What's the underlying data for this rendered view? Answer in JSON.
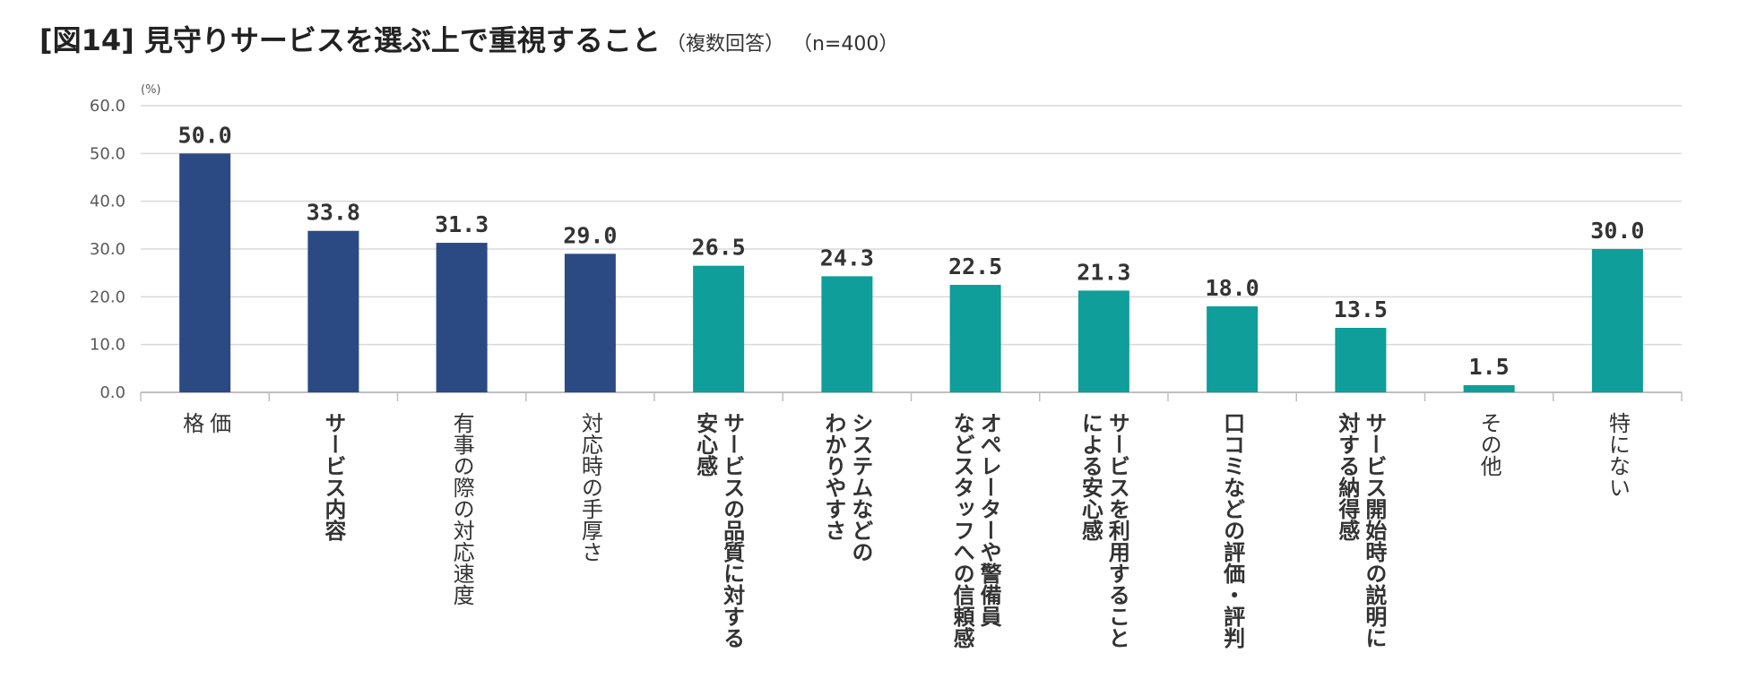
{
  "title": {
    "main": "[図14] 見守りサービスを選ぶ上で重視すること",
    "sub": "（複数回答）",
    "sample": "（n=400）"
  },
  "chart_data": {
    "type": "bar",
    "title": "[図14] 見守りサービスを選ぶ上で重視すること",
    "unit": "(%)",
    "ylim": [
      0,
      60
    ],
    "yticks": [
      "0.0",
      "10.0",
      "20.0",
      "30.0",
      "40.0",
      "50.0",
      "60.0"
    ],
    "grid": true,
    "colors": {
      "primary": "#2B4A84",
      "secondary": "#0F9E99"
    },
    "categories": [
      {
        "lines": [
          "価",
          "格"
        ],
        "value": 50.0,
        "label": "50.0",
        "group": "primary",
        "bold": false
      },
      {
        "lines": [
          "サービス内容"
        ],
        "value": 33.8,
        "label": "33.8",
        "group": "primary",
        "bold": true
      },
      {
        "lines": [
          "有事の際の対応速度"
        ],
        "value": 31.3,
        "label": "31.3",
        "group": "primary",
        "bold": false
      },
      {
        "lines": [
          "対応時の手厚さ"
        ],
        "value": 29.0,
        "label": "29.0",
        "group": "primary",
        "bold": false
      },
      {
        "lines": [
          "サービスの品質に対する",
          "安心感"
        ],
        "value": 26.5,
        "label": "26.5",
        "group": "secondary",
        "bold": true
      },
      {
        "lines": [
          "システムなどの",
          "わかりやすさ"
        ],
        "value": 24.3,
        "label": "24.3",
        "group": "secondary",
        "bold": true
      },
      {
        "lines": [
          "オペレーターや警備員",
          "などスタッフへの信頼感"
        ],
        "value": 22.5,
        "label": "22.5",
        "group": "secondary",
        "bold": true
      },
      {
        "lines": [
          "サービスを利用すること",
          "による安心感"
        ],
        "value": 21.3,
        "label": "21.3",
        "group": "secondary",
        "bold": true
      },
      {
        "lines": [
          "口コミなどの評価・評判"
        ],
        "value": 18.0,
        "label": "18.0",
        "group": "secondary",
        "bold": true
      },
      {
        "lines": [
          "サービス開始時の説明に",
          "対する納得感"
        ],
        "value": 13.5,
        "label": "13.5",
        "group": "secondary",
        "bold": true
      },
      {
        "lines": [
          "その他"
        ],
        "value": 1.5,
        "label": "1.5",
        "group": "secondary",
        "bold": false
      },
      {
        "lines": [
          "特にない"
        ],
        "value": 30.0,
        "label": "30.0",
        "group": "secondary",
        "bold": false
      }
    ]
  }
}
